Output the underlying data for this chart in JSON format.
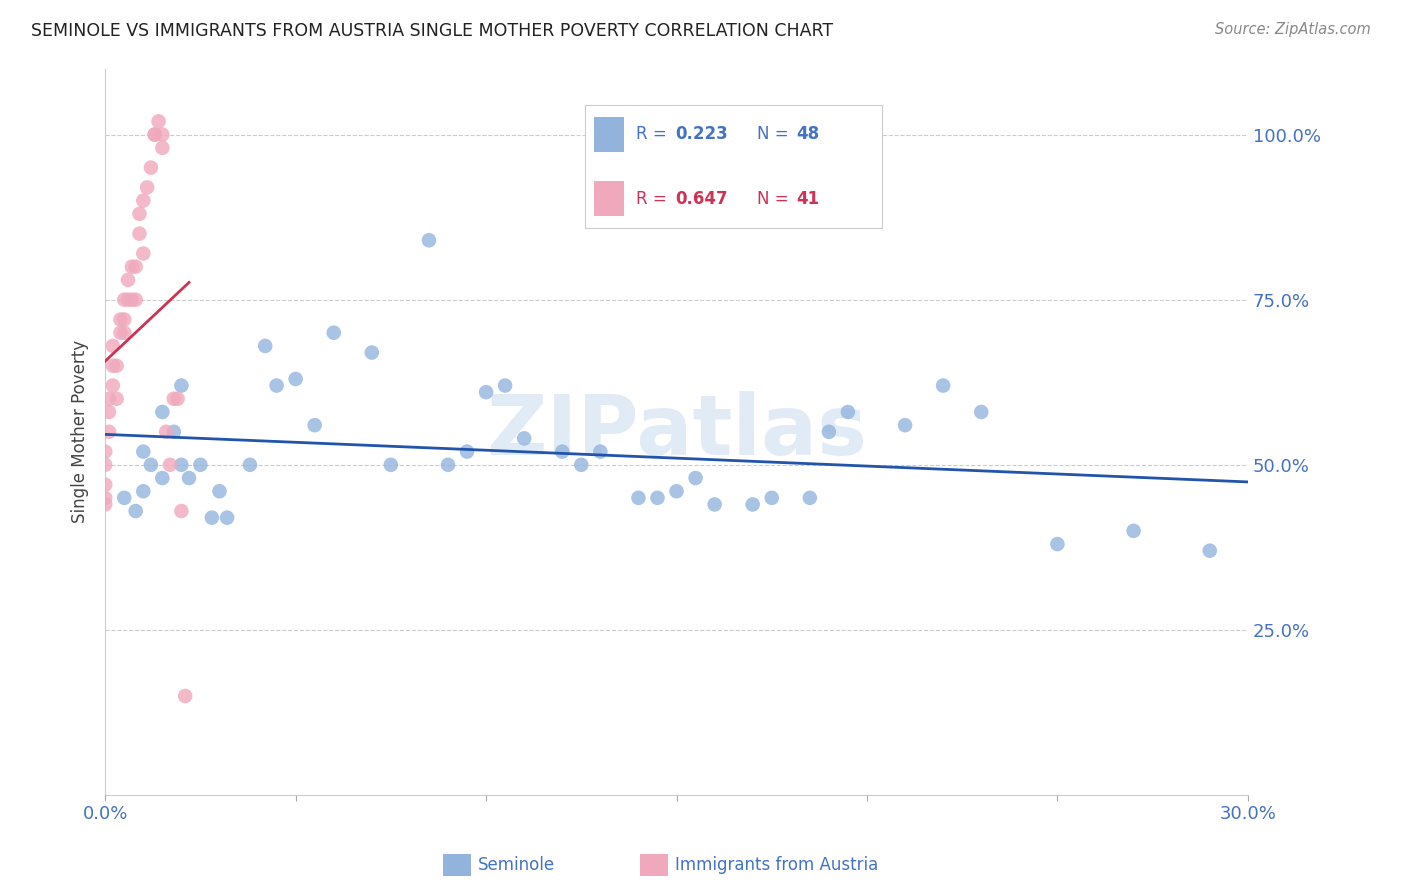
{
  "title": "SEMINOLE VS IMMIGRANTS FROM AUSTRIA SINGLE MOTHER POVERTY CORRELATION CHART",
  "source": "Source: ZipAtlas.com",
  "ylabel": "Single Mother Poverty",
  "xlim": [
    0.0,
    0.3
  ],
  "ylim": [
    0.0,
    1.1
  ],
  "yticks": [
    0.25,
    0.5,
    0.75,
    1.0
  ],
  "ytick_labels": [
    "25.0%",
    "50.0%",
    "75.0%",
    "100.0%"
  ],
  "xticks": [
    0.0,
    0.05,
    0.1,
    0.15,
    0.2,
    0.25,
    0.3
  ],
  "xtick_labels": [
    "0.0%",
    "",
    "",
    "",
    "",
    "",
    "30.0%"
  ],
  "R_seminole": 0.223,
  "N_seminole": 48,
  "R_austria": 0.647,
  "N_austria": 41,
  "color_seminole": "#92b4dc",
  "color_austria": "#f0a8bc",
  "line_color_seminole": "#2255aa",
  "line_color_austria": "#cc3355",
  "watermark": "ZIPatlas",
  "background_color": "#ffffff",
  "seminole_x": [
    0.005,
    0.008,
    0.01,
    0.01,
    0.012,
    0.015,
    0.015,
    0.018,
    0.02,
    0.02,
    0.022,
    0.025,
    0.028,
    0.03,
    0.032,
    0.038,
    0.042,
    0.045,
    0.05,
    0.055,
    0.06,
    0.07,
    0.075,
    0.085,
    0.09,
    0.095,
    0.1,
    0.105,
    0.11,
    0.12,
    0.125,
    0.13,
    0.14,
    0.145,
    0.15,
    0.155,
    0.16,
    0.17,
    0.175,
    0.185,
    0.19,
    0.195,
    0.21,
    0.22,
    0.23,
    0.25,
    0.27,
    0.29
  ],
  "seminole_y": [
    0.45,
    0.43,
    0.46,
    0.52,
    0.5,
    0.48,
    0.58,
    0.55,
    0.5,
    0.62,
    0.48,
    0.5,
    0.42,
    0.46,
    0.42,
    0.5,
    0.68,
    0.62,
    0.63,
    0.56,
    0.7,
    0.67,
    0.5,
    0.84,
    0.5,
    0.52,
    0.61,
    0.62,
    0.54,
    0.52,
    0.5,
    0.52,
    0.45,
    0.45,
    0.46,
    0.48,
    0.44,
    0.44,
    0.45,
    0.45,
    0.55,
    0.58,
    0.56,
    0.62,
    0.58,
    0.38,
    0.4,
    0.37
  ],
  "austria_x": [
    0.0,
    0.0,
    0.0,
    0.0,
    0.0,
    0.001,
    0.001,
    0.001,
    0.002,
    0.002,
    0.002,
    0.003,
    0.003,
    0.004,
    0.004,
    0.005,
    0.005,
    0.005,
    0.006,
    0.006,
    0.007,
    0.007,
    0.008,
    0.008,
    0.009,
    0.009,
    0.01,
    0.01,
    0.011,
    0.012,
    0.013,
    0.013,
    0.014,
    0.015,
    0.015,
    0.016,
    0.017,
    0.018,
    0.019,
    0.02,
    0.021
  ],
  "austria_y": [
    0.44,
    0.45,
    0.47,
    0.5,
    0.52,
    0.55,
    0.58,
    0.6,
    0.62,
    0.65,
    0.68,
    0.6,
    0.65,
    0.7,
    0.72,
    0.7,
    0.72,
    0.75,
    0.75,
    0.78,
    0.75,
    0.8,
    0.75,
    0.8,
    0.85,
    0.88,
    0.82,
    0.9,
    0.92,
    0.95,
    1.0,
    1.0,
    1.02,
    1.0,
    0.98,
    0.55,
    0.5,
    0.6,
    0.6,
    0.43,
    0.15
  ]
}
